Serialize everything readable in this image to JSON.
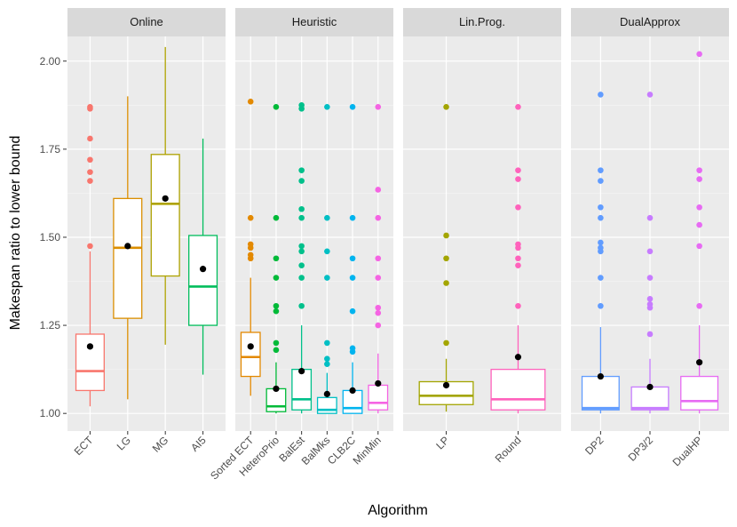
{
  "chart_data": {
    "type": "boxplot",
    "xlabel": "Algorithm",
    "ylabel": "Makespan ratio to lower bound",
    "ylim": [
      0.95,
      2.07
    ],
    "yticks": [
      1.0,
      1.25,
      1.5,
      1.75,
      2.0
    ],
    "ytick_labels": [
      "1.00",
      "1.25",
      "1.50",
      "1.75",
      "2.00"
    ],
    "grid": true,
    "legend": "none",
    "facets": [
      {
        "label": "Online",
        "series": [
          {
            "name": "ECT",
            "color": "#F8766D",
            "q1": 1.065,
            "median": 1.12,
            "q3": 1.225,
            "whisker_low": 1.02,
            "whisker_high": 1.46,
            "mean": 1.19,
            "outliers": [
              1.475,
              1.66,
              1.685,
              1.72,
              1.78,
              1.865,
              1.87
            ]
          },
          {
            "name": "LG",
            "color": "#DB8E00",
            "q1": 1.27,
            "median": 1.47,
            "q3": 1.61,
            "whisker_low": 1.04,
            "whisker_high": 1.9,
            "mean": 1.475,
            "outliers": []
          },
          {
            "name": "MG",
            "color": "#AEA200",
            "q1": 1.39,
            "median": 1.595,
            "q3": 1.735,
            "whisker_low": 1.195,
            "whisker_high": 2.04,
            "mean": 1.61,
            "outliers": []
          },
          {
            "name": "AI5",
            "color": "#00BD5C",
            "q1": 1.25,
            "median": 1.36,
            "q3": 1.505,
            "whisker_low": 1.11,
            "whisker_high": 1.78,
            "mean": 1.41,
            "outliers": []
          }
        ]
      },
      {
        "label": "Heuristic",
        "series": [
          {
            "name": "Sorted ECT",
            "color": "#E38900",
            "q1": 1.105,
            "median": 1.16,
            "q3": 1.23,
            "whisker_low": 1.05,
            "whisker_high": 1.385,
            "mean": 1.19,
            "outliers": [
              1.44,
              1.45,
              1.47,
              1.48,
              1.555,
              1.885
            ]
          },
          {
            "name": "HeteroPrio",
            "color": "#00BA38",
            "q1": 1.005,
            "median": 1.02,
            "q3": 1.07,
            "whisker_low": 1.0,
            "whisker_high": 1.145,
            "mean": 1.07,
            "outliers": [
              1.18,
              1.2,
              1.29,
              1.305,
              1.385,
              1.44,
              1.555,
              1.87
            ]
          },
          {
            "name": "BalEst",
            "color": "#00C08B",
            "q1": 1.01,
            "median": 1.04,
            "q3": 1.125,
            "whisker_low": 1.0,
            "whisker_high": 1.25,
            "mean": 1.12,
            "outliers": [
              1.305,
              1.385,
              1.42,
              1.46,
              1.475,
              1.555,
              1.58,
              1.66,
              1.69,
              1.865,
              1.875
            ]
          },
          {
            "name": "BalMks",
            "color": "#00BFC4",
            "q1": 1.0,
            "median": 1.01,
            "q3": 1.045,
            "whisker_low": 1.0,
            "whisker_high": 1.115,
            "mean": 1.055,
            "outliers": [
              1.14,
              1.155,
              1.2,
              1.385,
              1.46,
              1.555,
              1.87
            ]
          },
          {
            "name": "CLB2C",
            "color": "#00B4EF",
            "q1": 1.0,
            "median": 1.015,
            "q3": 1.065,
            "whisker_low": 1.0,
            "whisker_high": 1.145,
            "mean": 1.065,
            "outliers": [
              1.175,
              1.185,
              1.29,
              1.385,
              1.44,
              1.555,
              1.87
            ]
          },
          {
            "name": "MinMin",
            "color": "#F564E3",
            "q1": 1.01,
            "median": 1.03,
            "q3": 1.08,
            "whisker_low": 1.0,
            "whisker_high": 1.17,
            "mean": 1.085,
            "outliers": [
              1.25,
              1.285,
              1.3,
              1.385,
              1.44,
              1.555,
              1.635,
              1.87
            ]
          }
        ]
      },
      {
        "label": "Lin.Prog.",
        "series": [
          {
            "name": "LP",
            "color": "#A3A500",
            "q1": 1.025,
            "median": 1.05,
            "q3": 1.09,
            "whisker_low": 1.005,
            "whisker_high": 1.155,
            "mean": 1.08,
            "outliers": [
              1.2,
              1.37,
              1.44,
              1.505,
              1.87
            ]
          },
          {
            "name": "Round",
            "color": "#FF62BC",
            "q1": 1.01,
            "median": 1.04,
            "q3": 1.125,
            "whisker_low": 1.0,
            "whisker_high": 1.25,
            "mean": 1.16,
            "outliers": [
              1.305,
              1.42,
              1.44,
              1.47,
              1.48,
              1.585,
              1.665,
              1.69,
              1.87
            ]
          }
        ]
      },
      {
        "label": "DualApprox",
        "series": [
          {
            "name": "DP2",
            "color": "#619CFF",
            "q1": 1.01,
            "median": 1.015,
            "q3": 1.105,
            "whisker_low": 1.0,
            "whisker_high": 1.245,
            "mean": 1.105,
            "outliers": [
              1.305,
              1.385,
              1.46,
              1.47,
              1.485,
              1.555,
              1.585,
              1.66,
              1.69,
              1.905
            ]
          },
          {
            "name": "DP3/2",
            "color": "#C77CFF",
            "q1": 1.01,
            "median": 1.015,
            "q3": 1.075,
            "whisker_low": 1.0,
            "whisker_high": 1.155,
            "mean": 1.075,
            "outliers": [
              1.225,
              1.3,
              1.31,
              1.325,
              1.385,
              1.46,
              1.555,
              1.905
            ]
          },
          {
            "name": "DualHP",
            "color": "#E76BF3",
            "q1": 1.01,
            "median": 1.035,
            "q3": 1.105,
            "whisker_low": 1.0,
            "whisker_high": 1.25,
            "mean": 1.145,
            "outliers": [
              1.305,
              1.475,
              1.535,
              1.585,
              1.665,
              1.69,
              2.02
            ]
          }
        ]
      }
    ]
  }
}
